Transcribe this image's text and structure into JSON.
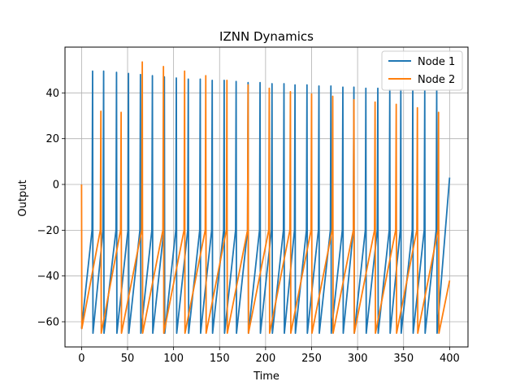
{
  "chart_data": {
    "type": "line",
    "title": "IZNN Dynamics",
    "xlabel": "Time",
    "ylabel": "Output",
    "xlim": [
      -18,
      420
    ],
    "ylim": [
      -71,
      60
    ],
    "xticks": [
      0,
      50,
      100,
      150,
      200,
      250,
      300,
      350,
      400
    ],
    "yticks": [
      -60,
      -40,
      -20,
      0,
      20,
      40
    ],
    "grid": true,
    "legend_position": "top-right",
    "series": [
      {
        "name": "Node 1",
        "color": "#1f77b4",
        "spikes": [
          [
            12,
            49.5
          ],
          [
            24,
            49.5
          ],
          [
            38,
            49
          ],
          [
            51,
            48.5
          ],
          [
            64,
            48
          ],
          [
            77,
            47.5
          ],
          [
            90,
            47
          ],
          [
            103,
            46.5
          ],
          [
            116,
            46
          ],
          [
            129,
            46
          ],
          [
            142,
            45.5
          ],
          [
            155,
            45.5
          ],
          [
            168,
            45
          ],
          [
            181,
            44.5
          ],
          [
            194,
            44.5
          ],
          [
            207,
            44
          ],
          [
            220,
            44
          ],
          [
            232,
            43.5
          ],
          [
            245,
            43.5
          ],
          [
            258,
            43
          ],
          [
            271,
            43
          ],
          [
            284,
            42.5
          ],
          [
            296,
            42.5
          ],
          [
            309,
            42
          ],
          [
            322,
            42
          ],
          [
            335,
            41.5
          ],
          [
            347,
            41.5
          ],
          [
            360,
            41
          ],
          [
            373,
            41
          ],
          [
            386,
            41
          ]
        ],
        "end": [
          400,
          3
        ]
      },
      {
        "name": "Node 2",
        "color": "#ff7f0e",
        "start": [
          0,
          0
        ],
        "spikes": [
          [
            21,
            32
          ],
          [
            43,
            31.5
          ],
          [
            66,
            53.5
          ],
          [
            89,
            51.5
          ],
          [
            112,
            49.5
          ],
          [
            135,
            47.5
          ],
          [
            158,
            45.5
          ],
          [
            181,
            43.5
          ],
          [
            204,
            42
          ],
          [
            227,
            40.5
          ],
          [
            250,
            39.5
          ],
          [
            273,
            38.5
          ],
          [
            296,
            37
          ],
          [
            319,
            36
          ],
          [
            342,
            35
          ],
          [
            365,
            33.5
          ],
          [
            388,
            31.5
          ]
        ],
        "end": [
          400,
          -42
        ]
      }
    ]
  }
}
